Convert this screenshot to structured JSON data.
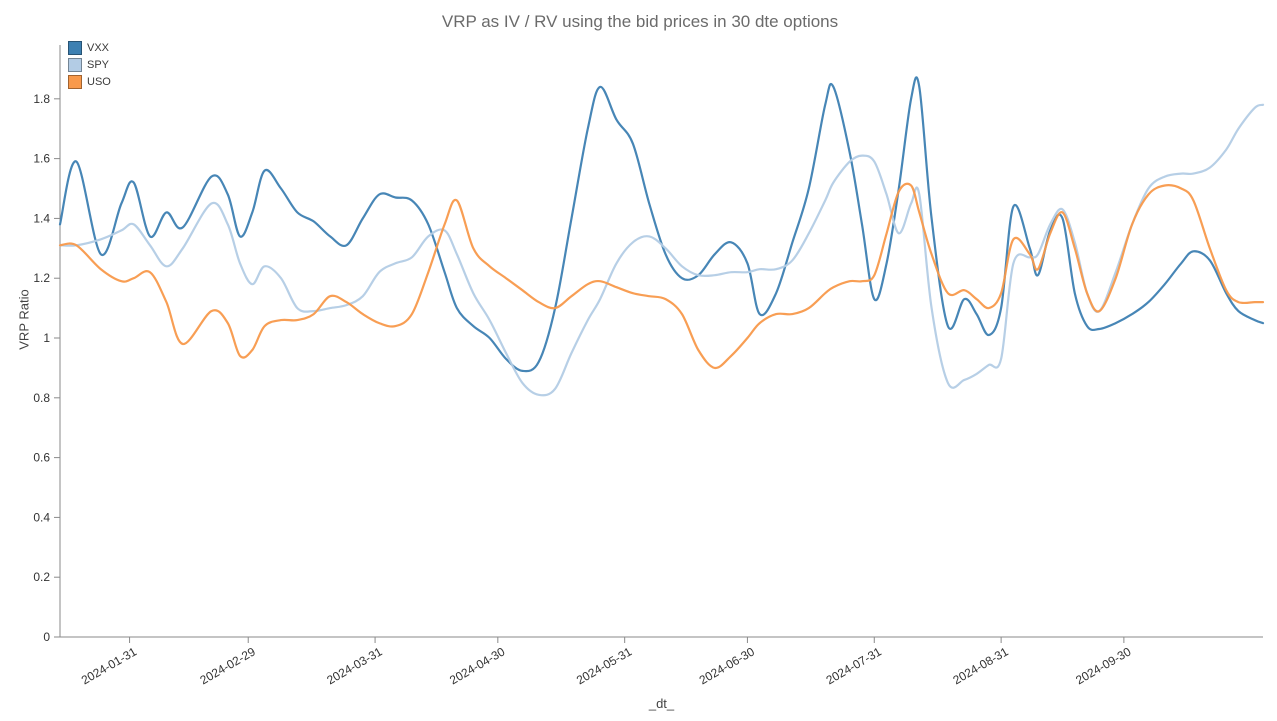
{
  "title": "VRP as IV / RV using the bid prices in 30 dte options",
  "chart_data": {
    "type": "line",
    "title": "VRP as IV / RV using the bid prices in 30 dte options",
    "xlabel": "_dt_",
    "ylabel": "VRP Ratio",
    "grid": false,
    "legend_position": "top-left",
    "ylim": [
      0,
      1.98
    ],
    "y_ticks": [
      0,
      0.2,
      0.4,
      0.6,
      0.8,
      1,
      1.2,
      1.4,
      1.6,
      1.8
    ],
    "y_tick_labels": [
      "0",
      "0.2",
      "0.4",
      "0.6",
      "0.8",
      "1",
      "1.2",
      "1.4",
      "1.6",
      "1.8"
    ],
    "x_ticks": [
      "2024-01-31",
      "2024-02-29",
      "2024-03-31",
      "2024-04-30",
      "2024-05-31",
      "2024-06-30",
      "2024-07-31",
      "2024-08-31",
      "2024-09-30"
    ],
    "x": [
      "2024-01-14",
      "2024-01-18",
      "2024-01-24",
      "2024-01-29",
      "2024-02-01",
      "2024-02-05",
      "2024-02-09",
      "2024-02-13",
      "2024-02-20",
      "2024-02-24",
      "2024-02-27",
      "2024-03-01",
      "2024-03-04",
      "2024-03-08",
      "2024-03-12",
      "2024-03-16",
      "2024-03-20",
      "2024-03-24",
      "2024-03-28",
      "2024-04-01",
      "2024-04-05",
      "2024-04-09",
      "2024-04-13",
      "2024-04-17",
      "2024-04-20",
      "2024-04-24",
      "2024-04-28",
      "2024-05-02",
      "2024-05-06",
      "2024-05-10",
      "2024-05-14",
      "2024-05-18",
      "2024-05-22",
      "2024-05-25",
      "2024-05-29",
      "2024-06-02",
      "2024-06-06",
      "2024-06-10",
      "2024-06-14",
      "2024-06-18",
      "2024-06-22",
      "2024-06-26",
      "2024-06-30",
      "2024-07-03",
      "2024-07-07",
      "2024-07-11",
      "2024-07-15",
      "2024-07-19",
      "2024-07-21",
      "2024-07-25",
      "2024-07-28",
      "2024-07-31",
      "2024-08-03",
      "2024-08-06",
      "2024-08-09",
      "2024-08-11",
      "2024-08-14",
      "2024-08-18",
      "2024-08-22",
      "2024-08-25",
      "2024-08-28",
      "2024-08-31",
      "2024-09-03",
      "2024-09-07",
      "2024-09-09",
      "2024-09-12",
      "2024-09-15",
      "2024-09-18",
      "2024-09-21",
      "2024-09-24",
      "2024-09-28",
      "2024-10-02",
      "2024-10-06",
      "2024-10-10",
      "2024-10-14",
      "2024-10-17",
      "2024-10-21",
      "2024-10-25",
      "2024-10-28",
      "2024-11-01",
      "2024-11-03"
    ],
    "series": [
      {
        "name": "VXX",
        "color": "#3d80b2",
        "values": [
          1.38,
          1.59,
          1.28,
          1.45,
          1.52,
          1.34,
          1.42,
          1.37,
          1.54,
          1.48,
          1.34,
          1.42,
          1.56,
          1.5,
          1.42,
          1.39,
          1.34,
          1.31,
          1.4,
          1.48,
          1.47,
          1.46,
          1.38,
          1.22,
          1.1,
          1.04,
          1.0,
          0.93,
          0.89,
          0.92,
          1.1,
          1.4,
          1.7,
          1.84,
          1.73,
          1.65,
          1.45,
          1.28,
          1.2,
          1.21,
          1.28,
          1.32,
          1.25,
          1.08,
          1.15,
          1.32,
          1.5,
          1.78,
          1.84,
          1.62,
          1.38,
          1.13,
          1.25,
          1.5,
          1.8,
          1.84,
          1.4,
          1.04,
          1.13,
          1.08,
          1.01,
          1.1,
          1.44,
          1.3,
          1.21,
          1.36,
          1.4,
          1.15,
          1.04,
          1.03,
          1.05,
          1.08,
          1.12,
          1.18,
          1.25,
          1.29,
          1.26,
          1.15,
          1.09,
          1.06,
          1.05
        ]
      },
      {
        "name": "SPY",
        "color": "#b3cce5",
        "values": [
          1.31,
          1.31,
          1.33,
          1.36,
          1.38,
          1.31,
          1.24,
          1.3,
          1.45,
          1.38,
          1.25,
          1.18,
          1.24,
          1.2,
          1.1,
          1.09,
          1.1,
          1.11,
          1.14,
          1.22,
          1.25,
          1.27,
          1.34,
          1.36,
          1.28,
          1.15,
          1.06,
          0.95,
          0.85,
          0.81,
          0.83,
          0.95,
          1.06,
          1.13,
          1.25,
          1.32,
          1.34,
          1.3,
          1.24,
          1.21,
          1.21,
          1.22,
          1.22,
          1.23,
          1.23,
          1.26,
          1.35,
          1.46,
          1.52,
          1.59,
          1.61,
          1.59,
          1.48,
          1.35,
          1.45,
          1.48,
          1.1,
          0.85,
          0.86,
          0.88,
          0.91,
          0.93,
          1.25,
          1.27,
          1.28,
          1.38,
          1.43,
          1.32,
          1.15,
          1.09,
          1.22,
          1.38,
          1.5,
          1.54,
          1.55,
          1.55,
          1.57,
          1.63,
          1.7,
          1.77,
          1.78
        ]
      },
      {
        "name": "USO",
        "color": "#f8994b",
        "values": [
          1.31,
          1.31,
          1.23,
          1.19,
          1.2,
          1.22,
          1.12,
          0.98,
          1.09,
          1.05,
          0.94,
          0.96,
          1.04,
          1.06,
          1.06,
          1.08,
          1.14,
          1.12,
          1.08,
          1.05,
          1.04,
          1.08,
          1.22,
          1.38,
          1.46,
          1.3,
          1.24,
          1.2,
          1.16,
          1.12,
          1.1,
          1.14,
          1.18,
          1.19,
          1.17,
          1.15,
          1.14,
          1.13,
          1.08,
          0.96,
          0.9,
          0.94,
          1.0,
          1.05,
          1.08,
          1.08,
          1.1,
          1.15,
          1.17,
          1.19,
          1.19,
          1.21,
          1.35,
          1.49,
          1.51,
          1.42,
          1.28,
          1.15,
          1.16,
          1.13,
          1.1,
          1.15,
          1.33,
          1.28,
          1.23,
          1.35,
          1.42,
          1.3,
          1.15,
          1.09,
          1.2,
          1.38,
          1.48,
          1.51,
          1.5,
          1.46,
          1.3,
          1.16,
          1.12,
          1.12,
          1.12
        ]
      }
    ]
  }
}
